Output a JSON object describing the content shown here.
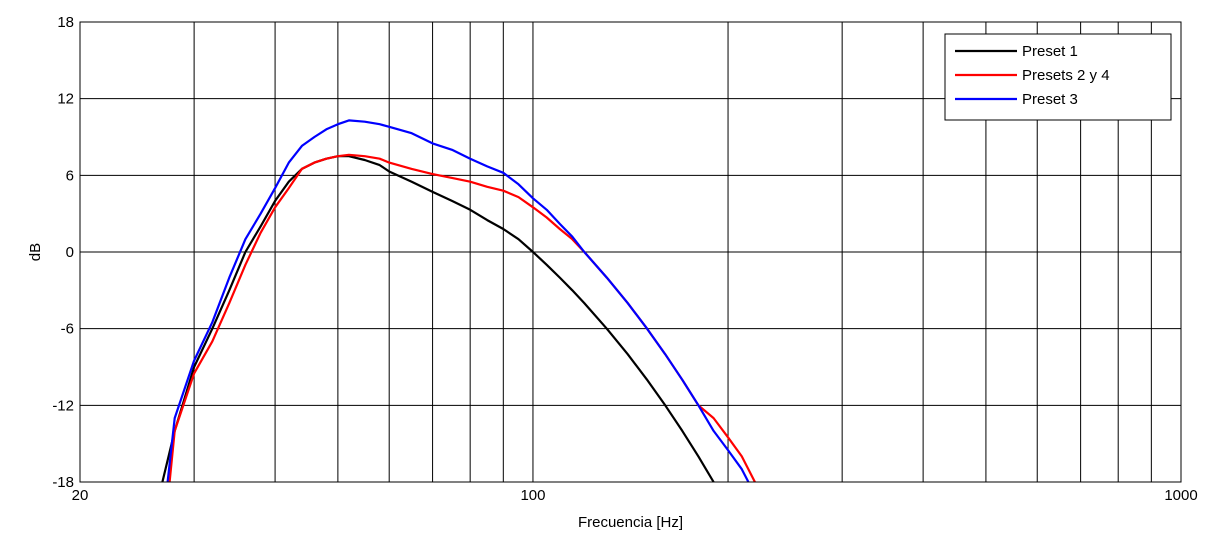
{
  "chart_data": {
    "type": "line",
    "xlabel": "Frecuencia [Hz]",
    "ylabel": "dB",
    "x_scale": "log",
    "xlim": [
      20,
      1000
    ],
    "ylim": [
      -18,
      18
    ],
    "x_tick_labels": [
      {
        "value": 20,
        "label": "20"
      },
      {
        "value": 100,
        "label": "100"
      },
      {
        "value": 1000,
        "label": "1000"
      }
    ],
    "y_ticks": [
      -18,
      -12,
      -6,
      0,
      6,
      12,
      18
    ],
    "y_tick_labels": [
      "-18",
      "-12",
      "-6",
      "0",
      "6",
      "12",
      "18"
    ],
    "grid": true,
    "legend_position": "top-right",
    "series": [
      {
        "name": "Preset 1",
        "color": "#000000",
        "x": [
          26.8,
          28,
          30,
          32,
          34,
          36,
          38,
          40,
          42,
          44,
          46,
          48,
          50,
          52,
          55,
          58,
          60,
          65,
          70,
          75,
          80,
          85,
          90,
          95,
          100,
          105,
          110,
          115,
          120,
          130,
          140,
          150,
          160,
          170,
          180,
          190
        ],
        "y": [
          -18,
          -14,
          -9,
          -6,
          -3,
          0,
          2,
          4,
          5.5,
          6.5,
          7,
          7.3,
          7.5,
          7.5,
          7.2,
          6.8,
          6.3,
          5.5,
          4.7,
          4,
          3.3,
          2.5,
          1.8,
          1,
          0,
          -1,
          -2,
          -3,
          -4,
          -6,
          -8,
          -10,
          -12,
          -14,
          -16,
          -18
        ]
      },
      {
        "name": "Presets 2 y 4",
        "color": "#ff0000",
        "x": [
          27.5,
          28,
          30,
          32,
          34,
          36,
          38,
          40,
          42,
          44,
          46,
          48,
          50,
          52,
          55,
          58,
          60,
          65,
          70,
          75,
          80,
          85,
          90,
          95,
          100,
          105,
          110,
          115,
          120,
          130,
          140,
          150,
          160,
          170,
          180,
          190,
          200,
          210,
          220
        ],
        "y": [
          -18,
          -14,
          -9.5,
          -7,
          -4,
          -1,
          1.5,
          3.5,
          5,
          6.5,
          7,
          7.3,
          7.5,
          7.6,
          7.5,
          7.3,
          7,
          6.5,
          6.1,
          5.8,
          5.5,
          5.1,
          4.8,
          4.3,
          3.5,
          2.7,
          1.8,
          1,
          0,
          -2,
          -4,
          -6,
          -8,
          -10,
          -12,
          -13,
          -14.5,
          -16,
          -18
        ]
      },
      {
        "name": "Preset 3",
        "color": "#0000ff",
        "x": [
          27.3,
          28,
          30,
          32,
          34,
          36,
          38,
          40,
          42,
          44,
          46,
          48,
          50,
          52,
          55,
          58,
          60,
          65,
          70,
          75,
          80,
          85,
          90,
          95,
          100,
          105,
          110,
          115,
          120,
          130,
          140,
          150,
          160,
          170,
          180,
          190,
          200,
          210,
          215
        ],
        "y": [
          -18,
          -13,
          -8.5,
          -5.5,
          -2,
          1,
          3,
          5,
          7,
          8.3,
          9,
          9.6,
          10,
          10.3,
          10.2,
          10,
          9.8,
          9.3,
          8.5,
          8,
          7.3,
          6.7,
          6.2,
          5.3,
          4.2,
          3.3,
          2.2,
          1.2,
          0,
          -2,
          -4,
          -6,
          -8,
          -10,
          -12,
          -14,
          -15.5,
          -17,
          -18
        ]
      }
    ]
  }
}
